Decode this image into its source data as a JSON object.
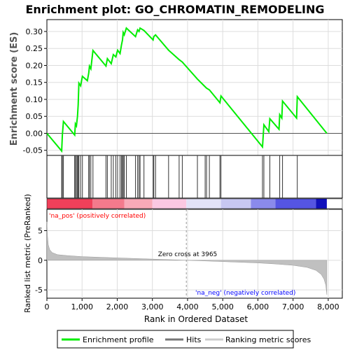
{
  "chart_data": {
    "title": "Enrichment plot: GO_CHROMATIN_REMODELING",
    "top_panel": {
      "type": "line",
      "ylabel": "Enrichment score (ES)",
      "ylim": [
        -0.065,
        0.335
      ],
      "yticks": [
        -0.05,
        0.0,
        0.05,
        0.1,
        0.15,
        0.2,
        0.25,
        0.3
      ],
      "ytick_labels": [
        "-0.05",
        "0.00",
        "0.05",
        "0.10",
        "0.15",
        "0.20",
        "0.25",
        "0.30"
      ],
      "line_color": "#00ee00",
      "points": [
        [
          0,
          0.0
        ],
        [
          420,
          -0.052
        ],
        [
          440,
          -0.005
        ],
        [
          470,
          0.035
        ],
        [
          790,
          -0.005
        ],
        [
          810,
          0.028
        ],
        [
          840,
          0.022
        ],
        [
          870,
          0.05
        ],
        [
          890,
          0.085
        ],
        [
          910,
          0.148
        ],
        [
          960,
          0.14
        ],
        [
          1010,
          0.168
        ],
        [
          1150,
          0.155
        ],
        [
          1190,
          0.178
        ],
        [
          1210,
          0.198
        ],
        [
          1250,
          0.19
        ],
        [
          1310,
          0.244
        ],
        [
          1680,
          0.198
        ],
        [
          1720,
          0.22
        ],
        [
          1830,
          0.205
        ],
        [
          1890,
          0.232
        ],
        [
          1960,
          0.225
        ],
        [
          2010,
          0.245
        ],
        [
          2080,
          0.235
        ],
        [
          2120,
          0.26
        ],
        [
          2150,
          0.275
        ],
        [
          2170,
          0.297
        ],
        [
          2200,
          0.29
        ],
        [
          2260,
          0.31
        ],
        [
          2520,
          0.285
        ],
        [
          2580,
          0.305
        ],
        [
          2620,
          0.3
        ],
        [
          2650,
          0.31
        ],
        [
          2760,
          0.303
        ],
        [
          3020,
          0.275
        ],
        [
          3040,
          0.285
        ],
        [
          3090,
          0.29
        ],
        [
          3460,
          0.245
        ],
        [
          3760,
          0.217
        ],
        [
          3850,
          0.21
        ],
        [
          4280,
          0.16
        ],
        [
          4500,
          0.137
        ],
        [
          4540,
          0.133
        ],
        [
          4620,
          0.128
        ],
        [
          4920,
          0.09
        ],
        [
          4950,
          0.11
        ],
        [
          6130,
          -0.04
        ],
        [
          6170,
          0.025
        ],
        [
          6310,
          0.005
        ],
        [
          6340,
          0.043
        ],
        [
          6600,
          0.012
        ],
        [
          6620,
          0.055
        ],
        [
          6680,
          0.045
        ],
        [
          6700,
          0.095
        ],
        [
          7100,
          0.045
        ],
        [
          7120,
          0.108
        ],
        [
          7960,
          0.0
        ]
      ],
      "hits": [
        420,
        440,
        470,
        790,
        810,
        840,
        870,
        890,
        910,
        960,
        1010,
        1190,
        1210,
        1250,
        1310,
        1680,
        1720,
        1830,
        1890,
        1960,
        2010,
        2080,
        2120,
        2150,
        2170,
        2200,
        2260,
        2520,
        2580,
        2620,
        2650,
        2760,
        3020,
        3040,
        3090,
        3460,
        3760,
        3850,
        4280,
        4500,
        4540,
        4620,
        4920,
        4950,
        6130,
        6170,
        6340,
        6620,
        6700,
        7120
      ]
    },
    "bottom_panel": {
      "type": "area",
      "ylabel": "Ranked list metric (PreRanked)",
      "xlabel": "Rank in Ordered Dataset",
      "xlim": [
        0,
        8400
      ],
      "ylim": [
        -6.4,
        8.6
      ],
      "yticks": [
        -5,
        0,
        5
      ],
      "ytick_labels": [
        "-5",
        "0",
        "5"
      ],
      "xticks": [
        0,
        1000,
        2000,
        3000,
        4000,
        5000,
        6000,
        7000,
        8000
      ],
      "xtick_labels": [
        "0",
        "1,000",
        "2,000",
        "3,000",
        "4,000",
        "5,000",
        "6,000",
        "7,000",
        "8,000"
      ],
      "metric_points": [
        [
          0,
          6.5
        ],
        [
          15,
          4.2
        ],
        [
          40,
          2.6
        ],
        [
          80,
          1.8
        ],
        [
          150,
          1.3
        ],
        [
          300,
          0.95
        ],
        [
          600,
          0.78
        ],
        [
          1000,
          0.62
        ],
        [
          2000,
          0.4
        ],
        [
          3000,
          0.2
        ],
        [
          3965,
          0.0
        ],
        [
          5000,
          -0.22
        ],
        [
          6000,
          -0.45
        ],
        [
          6500,
          -0.62
        ],
        [
          7000,
          -0.85
        ],
        [
          7400,
          -1.2
        ],
        [
          7650,
          -1.7
        ],
        [
          7800,
          -2.4
        ],
        [
          7880,
          -3.2
        ],
        [
          7930,
          -4.2
        ],
        [
          7960,
          -5.8
        ]
      ],
      "zero_cross_rank": 3965,
      "zero_cross_label": "Zero cross at 3965",
      "pos_label": "'na_pos' (positively correlated)",
      "neg_label": "'na_neg' (negatively correlated)",
      "pos_label_color": "#ff0000",
      "neg_label_color": "#0000ff"
    },
    "heatbar": {
      "segments": [
        {
          "start": 0,
          "end": 1300,
          "color": "#f0405a"
        },
        {
          "start": 1300,
          "end": 2200,
          "color": "#f47a8c"
        },
        {
          "start": 2200,
          "end": 3000,
          "color": "#f9aab8"
        },
        {
          "start": 3000,
          "end": 3965,
          "color": "#fbc8e2"
        },
        {
          "start": 3965,
          "end": 4950,
          "color": "#e2e2f7"
        },
        {
          "start": 4950,
          "end": 5800,
          "color": "#c8c8f2"
        },
        {
          "start": 5800,
          "end": 6500,
          "color": "#8a8aeb"
        },
        {
          "start": 6500,
          "end": 7650,
          "color": "#5555e2"
        },
        {
          "start": 7650,
          "end": 7960,
          "color": "#1010bb"
        }
      ]
    },
    "legend": [
      {
        "label": "Enrichment profile",
        "color": "#00ee00",
        "kind": "line"
      },
      {
        "label": "Hits",
        "color": "#777777",
        "kind": "line"
      },
      {
        "label": "Ranking metric scores",
        "color": "#cccccc",
        "kind": "line"
      }
    ]
  }
}
